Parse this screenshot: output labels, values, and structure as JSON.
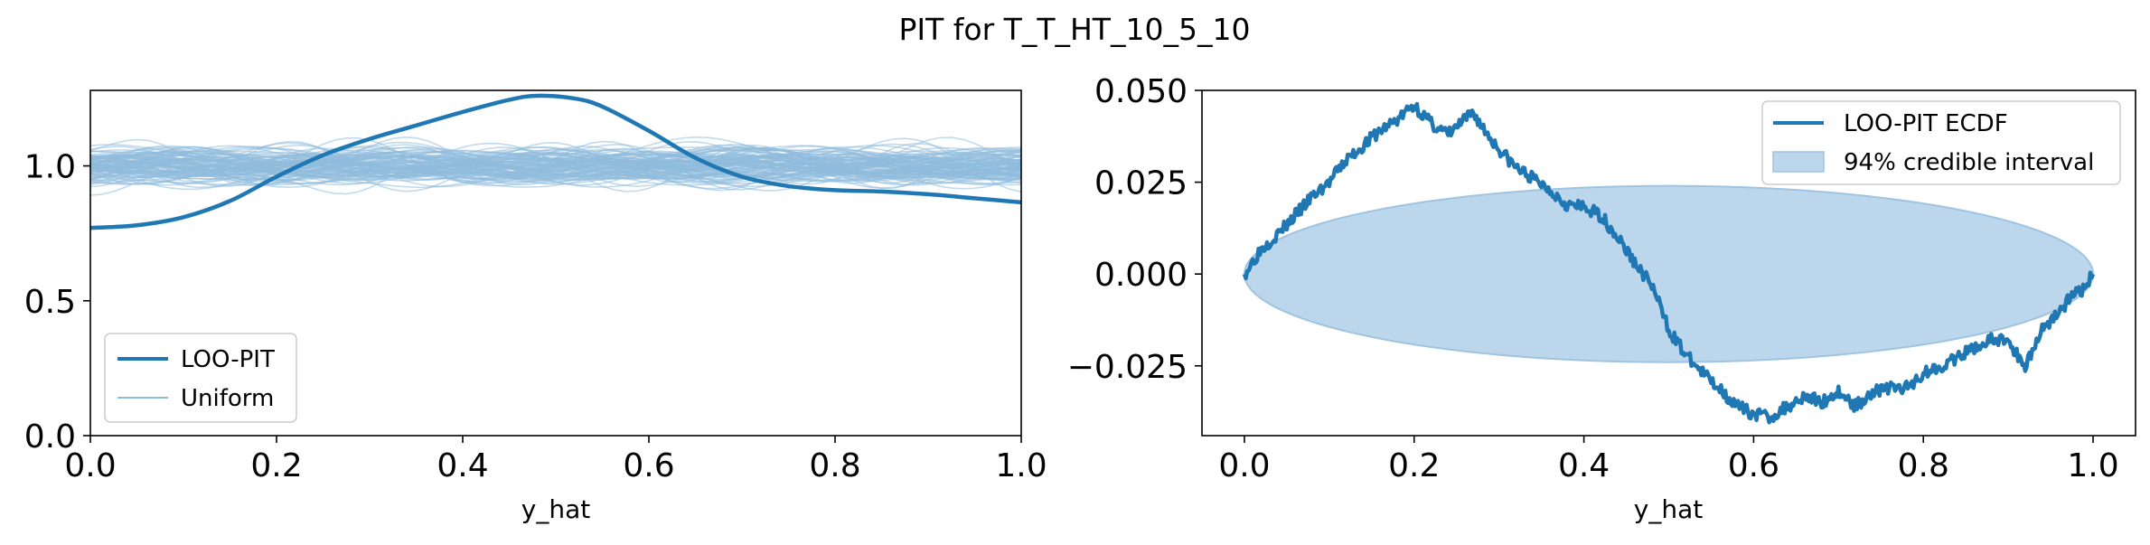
{
  "figure": {
    "title": "PIT for T_T_HT_10_5_10"
  },
  "colors": {
    "loo_line": "#1f77b4",
    "uniform_line": "#8fbcdc",
    "band_fill": "#bcd7ec",
    "band_edge": "#9ec4e2"
  },
  "chart_data": [
    {
      "type": "line",
      "panel": "left",
      "title": "",
      "xlabel": "y_hat",
      "ylabel": "",
      "xlim": [
        0.0,
        1.0
      ],
      "ylim": [
        0.0,
        1.28
      ],
      "xticks": [
        "0.0",
        "0.2",
        "0.4",
        "0.6",
        "0.8",
        "1.0"
      ],
      "yticks": [
        "0.0",
        "0.5",
        "1.0"
      ],
      "grid": false,
      "legend_position": "lower-left",
      "series": [
        {
          "name": "LOO-PIT",
          "x": [
            0.0,
            0.05,
            0.1,
            0.15,
            0.2,
            0.25,
            0.3,
            0.35,
            0.4,
            0.45,
            0.48,
            0.52,
            0.55,
            0.6,
            0.65,
            0.7,
            0.75,
            0.8,
            0.85,
            0.9,
            0.95,
            1.0
          ],
          "values": [
            0.77,
            0.78,
            0.81,
            0.87,
            0.96,
            1.04,
            1.1,
            1.15,
            1.2,
            1.245,
            1.26,
            1.25,
            1.22,
            1.13,
            1.03,
            0.96,
            0.925,
            0.91,
            0.905,
            0.895,
            0.88,
            0.865
          ]
        },
        {
          "name": "Uniform",
          "description_count": 100,
          "center": 1.0,
          "spread": [
            0.8,
            1.2
          ]
        }
      ]
    },
    {
      "type": "line",
      "panel": "right",
      "title": "",
      "xlabel": "y_hat",
      "ylabel": "",
      "xlim": [
        -0.05,
        1.05
      ],
      "ylim": [
        -0.044,
        0.05
      ],
      "xticks": [
        "0.0",
        "0.2",
        "0.4",
        "0.6",
        "0.8",
        "1.0"
      ],
      "yticks": [
        "0.050",
        "0.025",
        "0.000",
        "−0.025"
      ],
      "grid": false,
      "legend_position": "upper-right",
      "series": [
        {
          "name": "LOO-PIT ECDF",
          "x": [
            0.0,
            0.02,
            0.04,
            0.06,
            0.08,
            0.1,
            0.12,
            0.14,
            0.16,
            0.18,
            0.2,
            0.22,
            0.24,
            0.26,
            0.27,
            0.28,
            0.3,
            0.32,
            0.34,
            0.36,
            0.38,
            0.4,
            0.42,
            0.44,
            0.46,
            0.48,
            0.5,
            0.52,
            0.54,
            0.56,
            0.58,
            0.6,
            0.62,
            0.64,
            0.66,
            0.68,
            0.7,
            0.72,
            0.74,
            0.76,
            0.78,
            0.8,
            0.82,
            0.84,
            0.86,
            0.88,
            0.9,
            0.91,
            0.92,
            0.94,
            0.96,
            0.98,
            0.99,
            1.0
          ],
          "values": [
            0.0,
            0.007,
            0.011,
            0.016,
            0.021,
            0.025,
            0.031,
            0.035,
            0.039,
            0.042,
            0.046,
            0.041,
            0.038,
            0.042,
            0.044,
            0.04,
            0.034,
            0.029,
            0.026,
            0.023,
            0.019,
            0.018,
            0.016,
            0.01,
            0.003,
            -0.003,
            -0.015,
            -0.022,
            -0.027,
            -0.031,
            -0.036,
            -0.038,
            -0.039,
            -0.036,
            -0.033,
            -0.035,
            -0.032,
            -0.036,
            -0.032,
            -0.031,
            -0.031,
            -0.027,
            -0.025,
            -0.023,
            -0.02,
            -0.018,
            -0.018,
            -0.022,
            -0.025,
            -0.015,
            -0.01,
            -0.005,
            -0.004,
            0.0
          ]
        },
        {
          "name": "94% credible interval",
          "center_x": 0.5,
          "half_width_x": 0.5,
          "half_height_y": 0.024
        }
      ]
    }
  ]
}
